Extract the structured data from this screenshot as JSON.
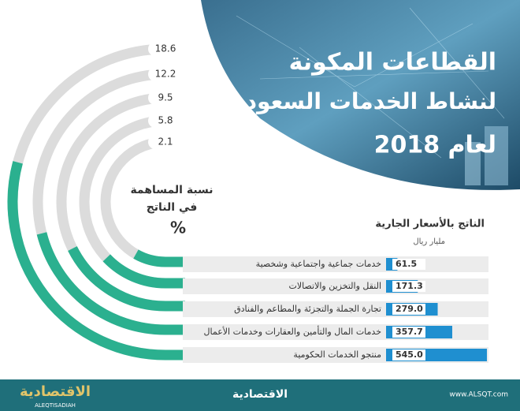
{
  "header": {
    "title_lines": [
      "القطاعات المكونة",
      "لنشاط الخدمات السعودي",
      "لعام 2018"
    ]
  },
  "chart_data": [
    {
      "type": "radial",
      "label_lines": [
        "نسبة المساهمة",
        "في الناتج",
        "%"
      ],
      "categories": [
        "خدمات جماعية واجتماعية وشخصية",
        "النقل والتخزين والاتصالات",
        "تجارة الجملة والتجزئة والمطاعم والفنادق",
        "خدمات المال والتأمين والعقارات وخدمات الأعمال",
        "منتجو الخدمات الحكومية"
      ],
      "values": [
        2.1,
        5.8,
        9.5,
        12.2,
        18.6
      ],
      "color": "#2bb08f",
      "track_color": "#dcdcdc"
    },
    {
      "type": "bar",
      "title": "الناتج بالأسعار الجارية",
      "subtitle": "مليار ريال",
      "categories": [
        "خدمات جماعية واجتماعية وشخصية",
        "النقل والتخزين والاتصالات",
        "تجارة الجملة والتجزئة والمطاعم والفنادق",
        "خدمات المال والتأمين والعقارات وخدمات الأعمال",
        "منتجو الخدمات الحكومية"
      ],
      "values": [
        61.5,
        171.3,
        279.0,
        357.7,
        545.0
      ],
      "value_labels": [
        "61.5",
        "171.3",
        "279.0",
        "357.7",
        "545.0"
      ],
      "color": "#1f8fd0"
    }
  ],
  "footer": {
    "logo": "الاقتصادية",
    "logo_latin": "ALEQTISADIAH",
    "site": "www.ALSQT.com"
  }
}
